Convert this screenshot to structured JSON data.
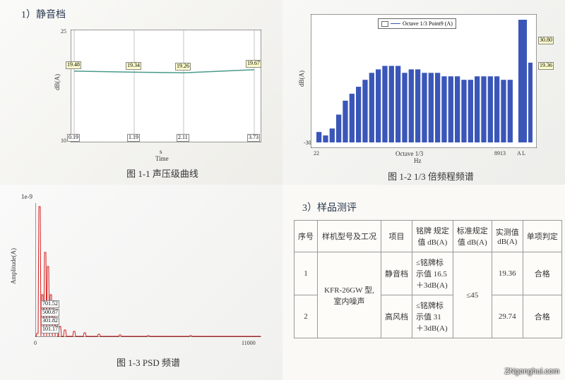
{
  "q1": {
    "section_title": "1）静音档",
    "caption": "图 1-1  声压级曲线",
    "ylabel": "dB(A)",
    "xlabel": "Time",
    "xsublabel": "s",
    "ymin": 10,
    "ymax": 25,
    "ytick_lo": "10",
    "ytick_hi": "25",
    "points": [
      {
        "t": "0.19",
        "v": 19.48,
        "vlabel": "19.48"
      },
      {
        "t": "1.19",
        "v": 19.34,
        "vlabel": "19.34"
      },
      {
        "t": "2.11",
        "v": 19.26,
        "vlabel": "19.26"
      },
      {
        "t": "3.73",
        "v": 19.67,
        "vlabel": "19.67"
      }
    ],
    "line_color": "#4a9a8a",
    "grid_color": "#888888",
    "bg": "#ffffff"
  },
  "q2": {
    "caption": "图 1-2  1/3 倍频程频谱",
    "legend_text": "Octave 1/3 Point9 (A)",
    "ylabel": "dB(A)",
    "xlabel": "Hz",
    "xsublabel": "Octave 1/3",
    "xmin_label": "22",
    "xmax_label": "8913",
    "right_ticks": "A  L",
    "ymin": -30,
    "ymax": 0,
    "top_val": "30.80",
    "mid_val": "19.36",
    "bars": [
      -27,
      -28,
      -26,
      -22,
      -18,
      -16,
      -14,
      -12,
      -10,
      -9,
      -8,
      -8,
      -8,
      -10,
      -9,
      -9,
      -10,
      -10,
      -10,
      -11,
      -11,
      -11,
      -12,
      -12,
      -11,
      -11,
      -11,
      -11,
      -12,
      -12
    ],
    "big_bar": 30,
    "bar_color": "#3a56b8",
    "line_color": "#3a56b8",
    "sq_color": "#ffffff",
    "bg": "#ffffff"
  },
  "q3": {
    "caption": "图 1-3  PSD 频谱",
    "ylabel": "Amplitude(A)",
    "ysublabel": "1e-9",
    "xmin_label": "0",
    "xmax_label": "11000",
    "line_color": "#d62020",
    "peaks": [
      "701.52",
      "500.87",
      "301.82",
      "101.17"
    ],
    "bg": "#ffffff"
  },
  "q4": {
    "section_title": "3）样品测评",
    "headers": {
      "seq": "序号",
      "model": "样机型号及工况",
      "item": "项目",
      "nameplate": "铭牌 规定\n值 dB(A)",
      "standard": "标准规定\n值 dB(A)",
      "measured": "实测值\ndB(A)",
      "verdict": "单项判定"
    },
    "rows": [
      {
        "seq": "1",
        "model": "KFR-26GW 型,\n室内噪声",
        "item": "静音档",
        "np": "≤铭牌标\n示值 16.5\n＋3dB(A)",
        "std": "≤45",
        "meas": "19.36",
        "ver": "合格"
      },
      {
        "seq": "2",
        "item": "高风档",
        "np": "≤铭牌标\n示值  31 \n＋3dB(A)",
        "meas": "29.74",
        "ver": "合格"
      }
    ]
  },
  "watermark": "ZNgonghui.com"
}
